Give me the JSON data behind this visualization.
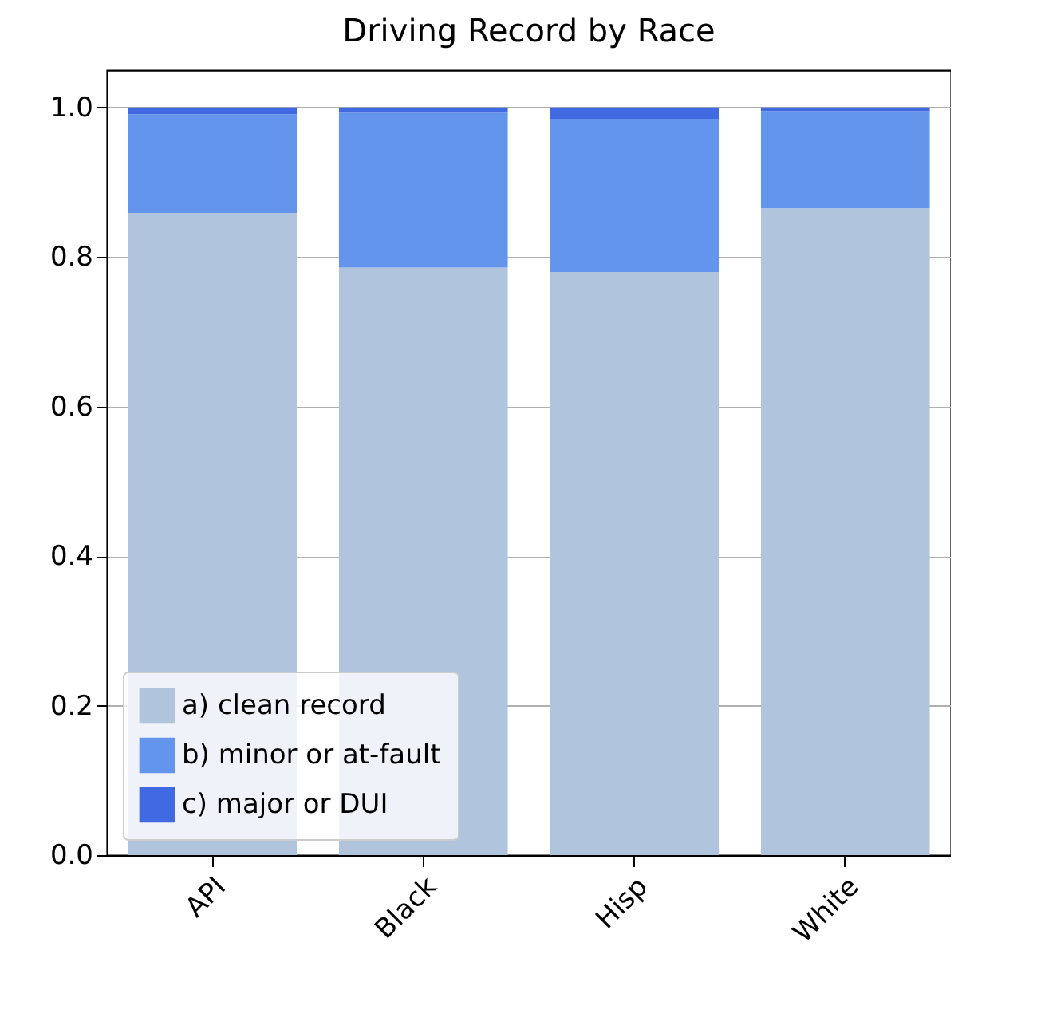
{
  "chart_data": {
    "type": "bar",
    "title": "Driving Record by Race",
    "categories": [
      "API",
      "Black",
      "Hisp",
      "White"
    ],
    "stacked": true,
    "series": [
      {
        "name": "a) clean record",
        "color": "#b0c4de",
        "values": [
          0.859,
          0.786,
          0.78,
          0.865
        ]
      },
      {
        "name": "b) minor or at-fault",
        "color": "#6495ed",
        "values": [
          0.132,
          0.207,
          0.205,
          0.13
        ]
      },
      {
        "name": "c) major or DUI",
        "color": "#4169e1",
        "values": [
          0.009,
          0.007,
          0.015,
          0.005
        ]
      }
    ],
    "ylim": [
      0,
      1.05
    ],
    "yticks": [
      {
        "value": 0,
        "label": "0.0"
      },
      0.2,
      0.4,
      0.6,
      0.8,
      {
        "value": 1,
        "label": "1.0"
      }
    ],
    "grid": "y",
    "legend": "bottom left"
  }
}
